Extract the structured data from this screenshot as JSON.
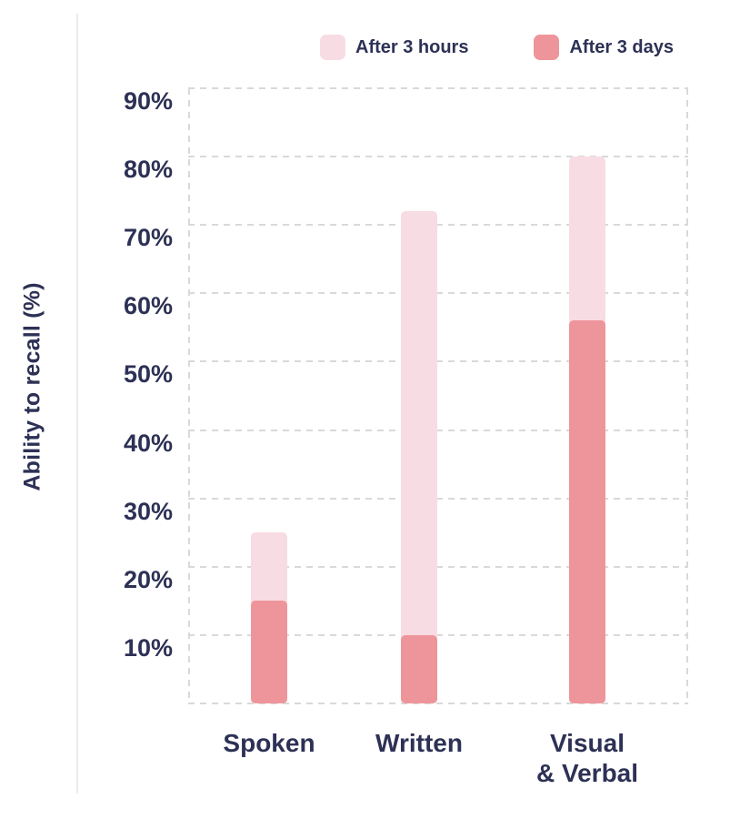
{
  "colors": {
    "text_navy": "#2d3155",
    "grid": "#d9d9d9",
    "after_3_hours_pink": "#f8dce3",
    "after_3_days_rose": "#ee959b"
  },
  "chart_data": {
    "type": "bar",
    "subtype": "overlayed-columns",
    "title": "",
    "ylabel": "Ability to recall (%)",
    "xlabel": "",
    "categories": [
      "Spoken",
      "Written",
      "Visual & Verbal"
    ],
    "category_lines": [
      [
        "Spoken"
      ],
      [
        "Written"
      ],
      [
        "Visual",
        "& Verbal"
      ]
    ],
    "series": [
      {
        "name": "After 3 hours",
        "color": "#f8dce3",
        "values": [
          25,
          72,
          80
        ]
      },
      {
        "name": "After 3 days",
        "color": "#ee959b",
        "values": [
          15,
          10,
          56
        ]
      }
    ],
    "ylim": [
      0,
      90
    ],
    "ytick_step": 10,
    "ytick_labels": [
      "90%",
      "80%",
      "70%",
      "60%",
      "50%",
      "40%",
      "30%",
      "20%",
      "10%"
    ],
    "grid": "horizontal-dashed",
    "plot_border": "dashed",
    "legend_position": "top"
  }
}
